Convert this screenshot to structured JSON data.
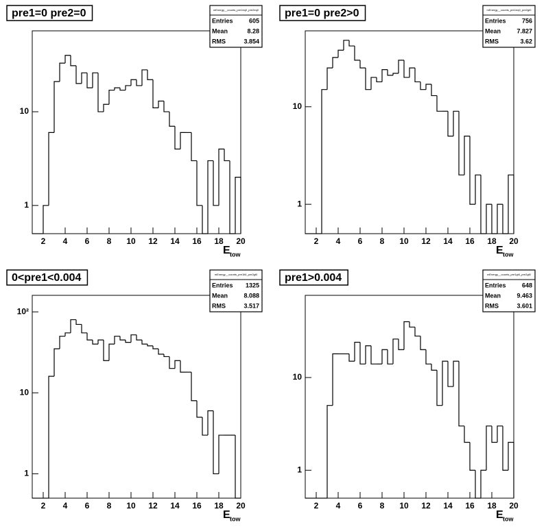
{
  "chart_data": [
    {
      "type": "histogram",
      "title": "pre1=0 pre2=0",
      "x_label": "E",
      "x_label_sub": "tow",
      "log_y": true,
      "color": "#000000",
      "bins": [
        1,
        1.5,
        2,
        2.5,
        3,
        3.5,
        4,
        4.5,
        5,
        5.5,
        6,
        6.5,
        7,
        7.5,
        8,
        8.5,
        9,
        9.5,
        10,
        10.5,
        11,
        11.5,
        12,
        12.5,
        13,
        13.5,
        14,
        14.5,
        15,
        15.5,
        16,
        16.5,
        17,
        17.5,
        18,
        18.5,
        19,
        19.5,
        20
      ],
      "values": [
        0,
        0,
        1,
        6,
        21,
        33,
        40,
        31,
        20,
        26,
        18,
        26,
        10,
        12,
        17,
        18,
        17,
        19,
        22,
        19,
        28,
        22,
        11,
        13,
        10,
        7,
        4,
        6,
        6,
        3,
        1,
        0,
        3,
        1,
        4,
        3,
        0,
        2
      ],
      "xlim": [
        1,
        20
      ],
      "xticks": [
        2,
        4,
        6,
        8,
        10,
        12,
        14,
        16,
        18,
        20
      ],
      "ylim": [
        0.5,
        73
      ],
      "yticks": [
        1,
        10
      ],
      "stats": {
        "name": "mEnergy__counts_pre1eq0_pre2eq0",
        "rows": [
          {
            "label": "Entries",
            "value": 605
          },
          {
            "label": "Mean",
            "value": 8.28
          },
          {
            "label": "RMS",
            "value": 3.854
          }
        ]
      }
    },
    {
      "type": "histogram",
      "title": "pre1=0 pre2>0",
      "x_label": "E",
      "x_label_sub": "tow",
      "log_y": true,
      "color": "#000000",
      "bins": [
        1,
        1.5,
        2,
        2.5,
        3,
        3.5,
        4,
        4.5,
        5,
        5.5,
        6,
        6.5,
        7,
        7.5,
        8,
        8.5,
        9,
        9.5,
        10,
        10.5,
        11,
        11.5,
        12,
        12.5,
        13,
        13.5,
        14,
        14.5,
        15,
        15.5,
        16,
        16.5,
        17,
        17.5,
        18,
        18.5,
        19,
        19.5,
        20
      ],
      "values": [
        0,
        0,
        0,
        15,
        25,
        32,
        38,
        48,
        42,
        30,
        25,
        15,
        20,
        18,
        24,
        21,
        22,
        30,
        20,
        25,
        18,
        15,
        17,
        13,
        9,
        9,
        5,
        9,
        2,
        5,
        1,
        2,
        0,
        1,
        0,
        1,
        0,
        2
      ],
      "xlim": [
        1,
        20
      ],
      "xticks": [
        2,
        4,
        6,
        8,
        10,
        12,
        14,
        16,
        18,
        20
      ],
      "ylim": [
        0.5,
        60
      ],
      "yticks": [
        1,
        10
      ],
      "stats": {
        "name": "mEnergy__counts_pre1eq0_pre2gt0",
        "rows": [
          {
            "label": "Entries",
            "value": 756
          },
          {
            "label": "Mean",
            "value": 7.827
          },
          {
            "label": "RMS",
            "value": 3.62
          }
        ]
      }
    },
    {
      "type": "histogram",
      "title": "0<pre1<0.004",
      "x_label": "E",
      "x_label_sub": "tow",
      "log_y": true,
      "color": "#000000",
      "bins": [
        1,
        1.5,
        2,
        2.5,
        3,
        3.5,
        4,
        4.5,
        5,
        5.5,
        6,
        6.5,
        7,
        7.5,
        8,
        8.5,
        9,
        9.5,
        10,
        10.5,
        11,
        11.5,
        12,
        12.5,
        13,
        13.5,
        14,
        14.5,
        15,
        15.5,
        16,
        16.5,
        17,
        17.5,
        18,
        18.5,
        19,
        19.5,
        20
      ],
      "values": [
        0,
        0,
        0,
        16,
        35,
        50,
        55,
        80,
        70,
        55,
        45,
        40,
        45,
        25,
        40,
        50,
        45,
        42,
        52,
        45,
        40,
        38,
        35,
        30,
        28,
        20,
        25,
        18,
        18,
        8,
        5,
        3,
        6,
        1,
        3,
        3,
        3,
        0
      ],
      "xlim": [
        1,
        20
      ],
      "xticks": [
        2,
        4,
        6,
        8,
        10,
        12,
        14,
        16,
        18,
        20
      ],
      "ylim": [
        0.5,
        160
      ],
      "yticks": [
        1,
        10,
        {
          "value": 100,
          "label": "10²"
        }
      ],
      "stats": {
        "name": "mEnergy__counts_pre1lt4_pre2gt0",
        "rows": [
          {
            "label": "Entries",
            "value": 1325
          },
          {
            "label": "Mean",
            "value": 8.088
          },
          {
            "label": "RMS",
            "value": 3.517
          }
        ]
      }
    },
    {
      "type": "histogram",
      "title": "pre1>0.004",
      "x_label": "E",
      "x_label_sub": "tow",
      "log_y": true,
      "color": "#000000",
      "bins": [
        1,
        1.5,
        2,
        2.5,
        3,
        3.5,
        4,
        4.5,
        5,
        5.5,
        6,
        6.5,
        7,
        7.5,
        8,
        8.5,
        9,
        9.5,
        10,
        10.5,
        11,
        11.5,
        12,
        12.5,
        13,
        13.5,
        14,
        14.5,
        15,
        15.5,
        16,
        16.5,
        17,
        17.5,
        18,
        18.5,
        19,
        19.5,
        20
      ],
      "values": [
        0,
        0,
        0,
        0,
        5,
        18,
        18,
        18,
        15,
        24,
        14,
        22,
        14,
        14,
        20,
        14,
        26,
        20,
        40,
        35,
        28,
        20,
        14,
        12,
        5,
        15,
        8,
        15,
        3,
        2,
        1,
        0,
        1,
        3,
        2,
        3,
        1,
        2
      ],
      "xlim": [
        1,
        20
      ],
      "xticks": [
        2,
        4,
        6,
        8,
        10,
        12,
        14,
        16,
        18,
        20
      ],
      "ylim": [
        0.5,
        77
      ],
      "yticks": [
        1,
        10
      ],
      "stats": {
        "name": "mEnergy__counts_pre1gt4_pre2gt0",
        "rows": [
          {
            "label": "Entries",
            "value": 648
          },
          {
            "label": "Mean",
            "value": 9.463
          },
          {
            "label": "RMS",
            "value": 3.601
          }
        ]
      }
    }
  ]
}
